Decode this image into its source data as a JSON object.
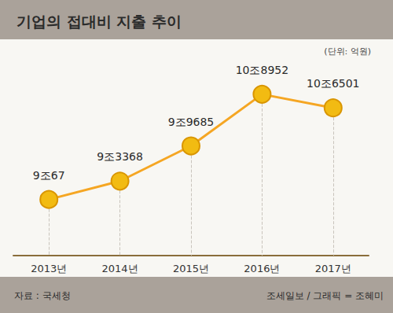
{
  "chart_data": {
    "type": "line",
    "title": "기업의 접대비 지출 추이",
    "subtitle": "(단위: 억원)",
    "source": "자료 : 국세청",
    "credit": "조세일보 / 그래픽 = 조혜미",
    "categories": [
      "2013년",
      "2014년",
      "2015년",
      "2016년",
      "2017년"
    ],
    "values": [
      90067,
      93368,
      99685,
      108952,
      106501
    ],
    "value_labels": [
      "9조67",
      "9조3368",
      "9조9685",
      "10조8952",
      "10조6501"
    ],
    "color": "#f5a623",
    "marker": "circle",
    "ylim": [
      80000,
      115000
    ],
    "data_labels": true,
    "tick_labels": "x",
    "grid": false
  }
}
